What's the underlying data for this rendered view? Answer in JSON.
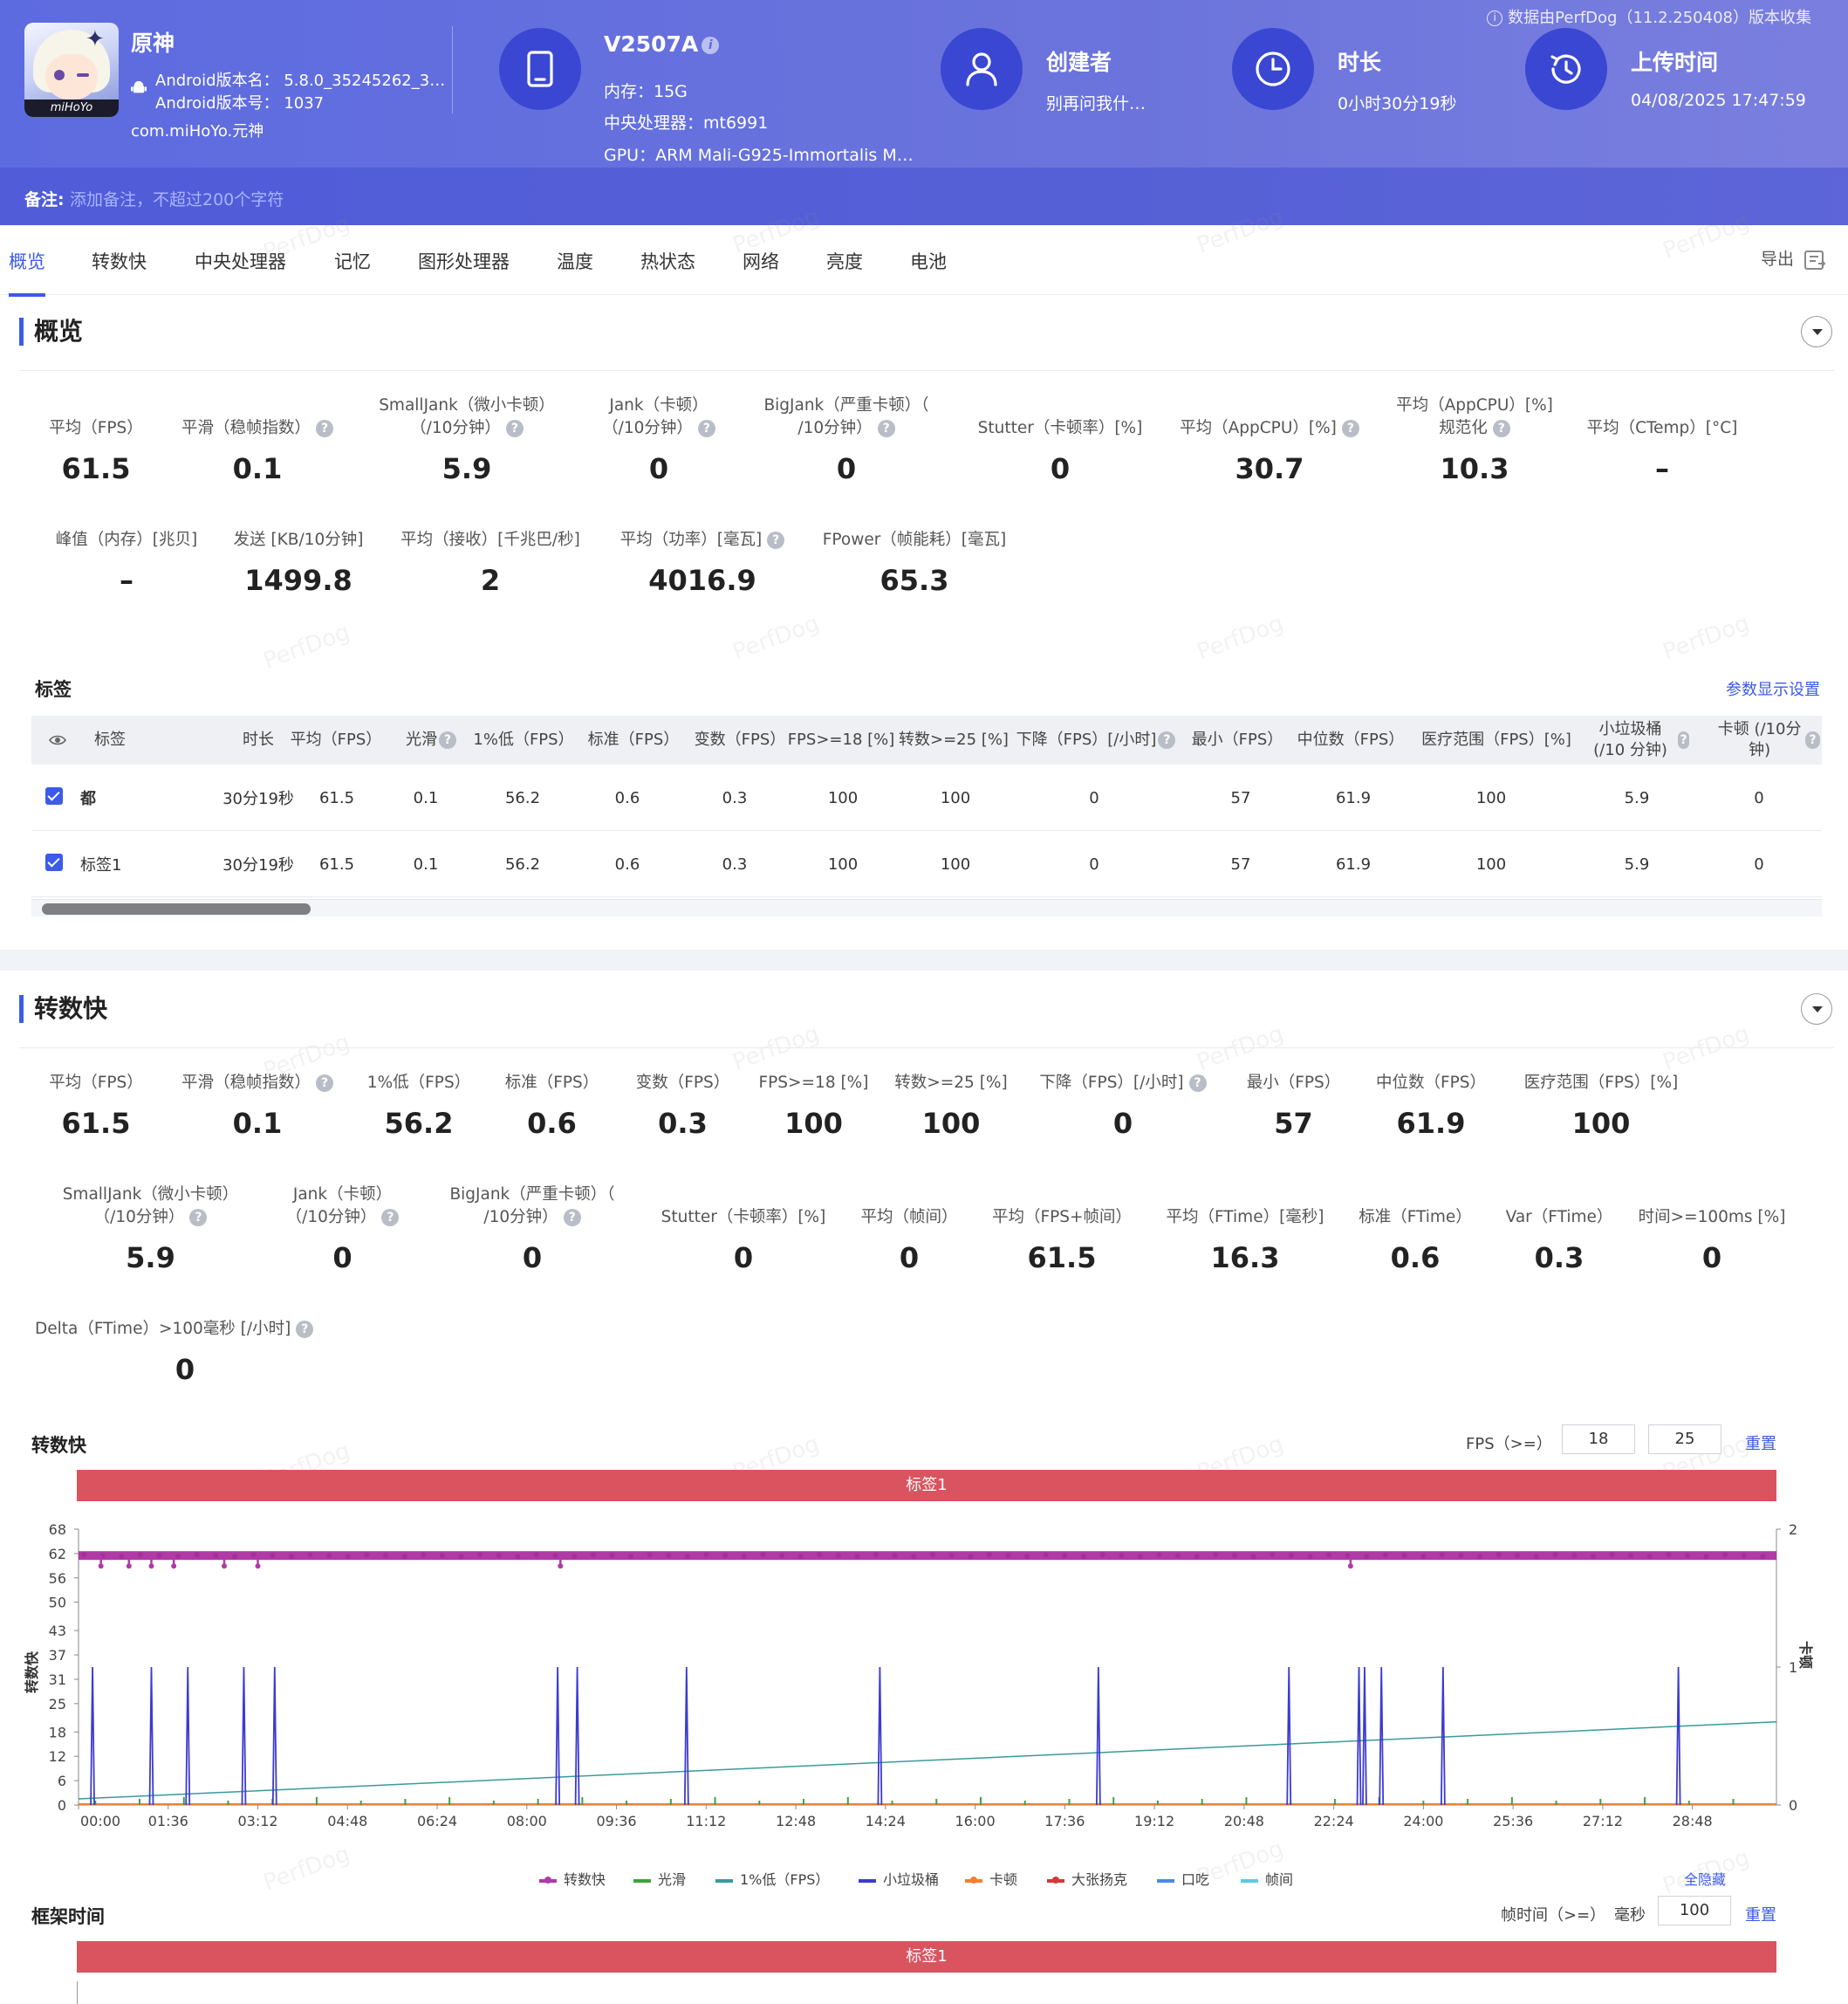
{
  "header": {
    "app_name": "原神",
    "android_version_name_label": "Android版本名：",
    "android_version_name": "5.8.0_35245262_3…",
    "android_version_code_label": "Android版本号：",
    "android_version_code": "1037",
    "package": "com.miHoYo.元神",
    "logo_text": "miHoYo",
    "device_model": "V2507A",
    "memory": "内存：15G",
    "cpu": "中央处理器：mt6991",
    "gpu": "GPU：ARM Mali-G925-Immortalis M…",
    "creator_title": "创建者",
    "creator_value": "别再问我什…",
    "duration_title": "时长",
    "duration_value": "0小时30分19秒",
    "upload_title": "上传时间",
    "upload_value": "04/08/2025 17:47:59",
    "source_note": "数据由PerfDog（11.2.250408）版本收集",
    "remark_label": "备注:",
    "remark_placeholder": "添加备注，不超过200个字符",
    "accent_color": "#3a47d2"
  },
  "tabs": [
    "概览",
    "转数快",
    "中央处理器",
    "记忆",
    "图形处理器",
    "温度",
    "热状态",
    "网络",
    "亮度",
    "电池"
  ],
  "export_label": "导出",
  "watermark": "PerfDog",
  "overview": {
    "title": "概览",
    "metrics_row1": [
      {
        "label": "平均（FPS）",
        "value": "61.5"
      },
      {
        "label": "平滑（稳帧指数）",
        "value": "0.1"
      },
      {
        "label1": "SmallJank（微小卡顿）",
        "label2": "（/10分钟）",
        "value": "5.9"
      },
      {
        "label1": "Jank（卡顿）",
        "label2": "（/10分钟）",
        "value": "0"
      },
      {
        "label1": "BigJank（严重卡顿）（",
        "label2": "/10分钟）",
        "value": "0"
      },
      {
        "label": "Stutter（卡顿率）[%]",
        "value": "0"
      },
      {
        "label": "平均（AppCPU）[%]",
        "value": "30.7"
      },
      {
        "label1": "平均（AppCPU）[%]",
        "label2": "规范化",
        "value": "10.3"
      },
      {
        "label": "平均（CTemp）[°C]",
        "value": "–"
      }
    ],
    "metrics_row2": [
      {
        "label": "峰值（内存）[兆贝]",
        "value": "–"
      },
      {
        "label": "发送 [KB/10分钟]",
        "value": "1499.8"
      },
      {
        "label": "平均（接收）[千兆巴/秒]",
        "value": "2"
      },
      {
        "label": "平均（功率）[毫瓦]",
        "value": "4016.9"
      },
      {
        "label": "FPower（帧能耗）[毫瓦]",
        "value": "65.3"
      }
    ]
  },
  "tag_table": {
    "title": "标签",
    "settings_link": "参数显示设置",
    "columns": [
      "标签",
      "时长",
      "平均（FPS）",
      "光滑",
      "1%低（FPS）",
      "标准（FPS）",
      "变数（FPS）",
      "FPS>=18 [%]",
      "转数>=25 [%]",
      "下降（FPS）[/小时]",
      "最小（FPS）",
      "中位数（FPS）",
      "医疗范围（FPS）[%]",
      "小垃圾桶 (/10 分钟)",
      "卡顿 (/10分钟)"
    ],
    "rows": [
      {
        "tag": "都",
        "cells": [
          "30分19秒",
          "61.5",
          "0.1",
          "56.2",
          "0.6",
          "0.3",
          "100",
          "100",
          "0",
          "57",
          "61.9",
          "100",
          "5.9",
          "0"
        ]
      },
      {
        "tag": "标签1",
        "cells": [
          "30分19秒",
          "61.5",
          "0.1",
          "56.2",
          "0.6",
          "0.3",
          "100",
          "100",
          "0",
          "57",
          "61.9",
          "100",
          "5.9",
          "0"
        ]
      }
    ]
  },
  "fps_section": {
    "title": "转数快",
    "metrics_row1": [
      {
        "label": "平均（FPS）",
        "value": "61.5"
      },
      {
        "label": "平滑（稳帧指数）",
        "value": "0.1"
      },
      {
        "label": "1%低（FPS）",
        "value": "56.2"
      },
      {
        "label": "标准（FPS）",
        "value": "0.6"
      },
      {
        "label": "变数（FPS）",
        "value": "0.3"
      },
      {
        "label": "FPS>=18 [%]",
        "value": "100"
      },
      {
        "label": "转数>=25 [%]",
        "value": "100"
      },
      {
        "label": "下降（FPS）[/小时]",
        "value": "0"
      },
      {
        "label": "最小（FPS）",
        "value": "57"
      },
      {
        "label": "中位数（FPS）",
        "value": "61.9"
      },
      {
        "label": "医疗范围（FPS）[%]",
        "value": "100"
      }
    ],
    "metrics_row2": [
      {
        "label1": "SmallJank（微小卡顿）",
        "label2": "（/10分钟）",
        "value": "5.9"
      },
      {
        "label1": "Jank（卡顿）",
        "label2": "（/10分钟）",
        "value": "0"
      },
      {
        "label1": "BigJank（严重卡顿）（",
        "label2": "/10分钟）",
        "value": "0"
      },
      {
        "label": "Stutter（卡顿率）[%]",
        "value": "0"
      },
      {
        "label": "平均（帧间）",
        "value": "0"
      },
      {
        "label": "平均（FPS+帧间）",
        "value": "61.5"
      },
      {
        "label": "平均（FTime）[毫秒]",
        "value": "16.3"
      },
      {
        "label": "标准（FTime）",
        "value": "0.6"
      },
      {
        "label": "Var（FTime）",
        "value": "0.3"
      },
      {
        "label": "时间>=100ms [%]",
        "value": "0"
      }
    ],
    "metrics_row3": [
      {
        "label": "Delta（FTime）>100毫秒 [/小时]",
        "value": "0"
      }
    ],
    "chart_label": "转数快",
    "fps_threshold_label": "FPS（>=）",
    "fps_threshold_1": "18",
    "fps_threshold_2": "25",
    "reset_label": "重置",
    "tag_bar_label": "标签1",
    "hide_all_label": "全隐藏",
    "legend": [
      {
        "name": "转数快",
        "color": "#b03aa6"
      },
      {
        "name": "光滑",
        "color": "#3da33d"
      },
      {
        "name": "1%低（FPS）",
        "color": "#3a9a9a"
      },
      {
        "name": "小垃圾桶",
        "color": "#3b3bd1"
      },
      {
        "name": "卡顿",
        "color": "#f08030"
      },
      {
        "name": "大张扬克",
        "color": "#d23b3b"
      },
      {
        "name": "口吃",
        "color": "#4f86e8"
      },
      {
        "name": "帧间",
        "color": "#5ec8e0"
      }
    ]
  },
  "frame_time": {
    "title": "框架时间",
    "threshold_label": "帧时间（>=）",
    "unit": "毫秒",
    "threshold_value": "100",
    "reset_label": "重置",
    "tag_bar_label": "标签1"
  },
  "chart_data": {
    "type": "line",
    "title": "",
    "xlabel": "",
    "ylabel": "转数快",
    "y2label": "卡顿",
    "x_ticks": [
      "00:00",
      "01:36",
      "03:12",
      "04:48",
      "06:24",
      "08:00",
      "09:36",
      "11:12",
      "12:48",
      "14:24",
      "16:00",
      "17:36",
      "19:12",
      "20:48",
      "22:24",
      "24:00",
      "25:36",
      "27:12",
      "28:48"
    ],
    "y_ticks": [
      0,
      6,
      12,
      18,
      25,
      31,
      37,
      43,
      50,
      56,
      62,
      68
    ],
    "y2_ticks": [
      0,
      1,
      2
    ],
    "ylim": [
      0,
      68
    ],
    "y2lim": [
      0,
      2
    ],
    "duration_min": 30.3,
    "series": [
      {
        "name": "转数快",
        "constant_value": 61.5,
        "dips_min": [
          0.4,
          0.9,
          1.3,
          1.7,
          2.6,
          3.2,
          8.6,
          22.7
        ]
      },
      {
        "name": "1%低（FPS）",
        "x_min": [
          0,
          30.3
        ],
        "values": [
          1.5,
          20.5
        ]
      },
      {
        "name": "小垃圾桶",
        "spike_times_min": [
          0.25,
          1.3,
          1.95,
          2.95,
          3.5,
          8.55,
          8.9,
          10.85,
          14.3,
          18.2,
          21.6,
          22.85,
          22.95,
          23.25,
          24.35,
          28.55
        ],
        "spike_value": 1
      }
    ]
  }
}
